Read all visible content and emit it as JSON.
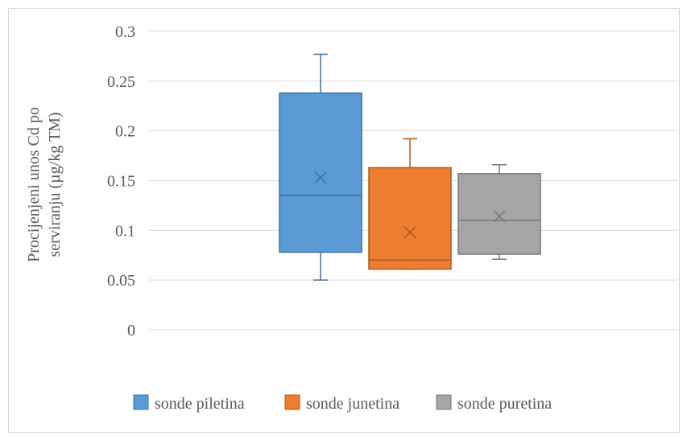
{
  "chart_data": {
    "type": "boxplot",
    "ylabel_lines": [
      "Procijenjeni  unos Cd po",
      "serviranju  (µg/kg TM)"
    ],
    "ylim": [
      0,
      0.3
    ],
    "yticks": [
      0,
      0.05,
      0.1,
      0.15,
      0.2,
      0.25,
      0.3
    ],
    "ytick_labels": [
      "0",
      "0.05",
      "0.1",
      "0.15",
      "0.2",
      "0.25",
      "0.3"
    ],
    "grid": true,
    "legend_position": "bottom",
    "series": [
      {
        "name": "sonde piletina",
        "color": "#5b9bd5",
        "stroke": "#41719c",
        "min": 0.05,
        "q1": 0.078,
        "median": 0.135,
        "q3": 0.238,
        "max": 0.277,
        "mean": 0.153
      },
      {
        "name": "sonde junetina",
        "color": "#ed7d31",
        "stroke": "#ae5a21",
        "min": 0.061,
        "q1": 0.061,
        "median": 0.07,
        "q3": 0.163,
        "max": 0.192,
        "mean": 0.098
      },
      {
        "name": "sonde puretina",
        "color": "#a5a5a5",
        "stroke": "#787878",
        "min": 0.071,
        "q1": 0.076,
        "median": 0.11,
        "q3": 0.157,
        "max": 0.166,
        "mean": 0.114
      }
    ]
  }
}
